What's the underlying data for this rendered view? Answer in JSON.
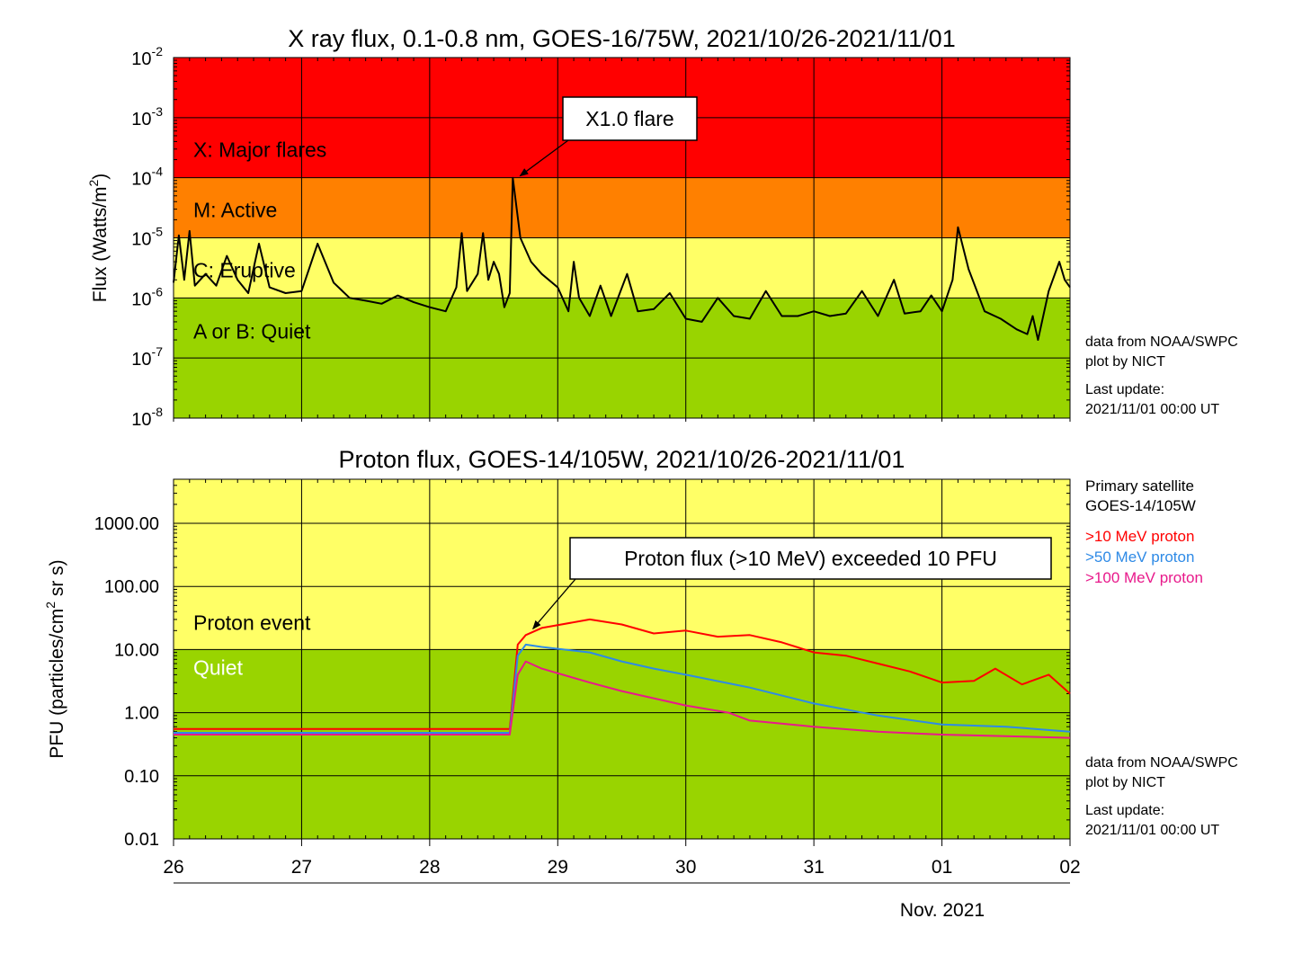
{
  "chart_data": [
    {
      "type": "line",
      "title": "X ray flux, 0.1-0.8 nm, GOES-16/75W, 2021/10/26-2021/11/01",
      "ylabel_main": "Flux (Watts/m",
      "ylabel_sup": "2",
      "ylabel_end": ")",
      "log_scale": true,
      "ylim": [
        1e-08,
        0.01
      ],
      "xlim": [
        "2021-10-26",
        "2021-11-02"
      ],
      "grid": true,
      "y_ticks": [
        {
          "value": 1e-08,
          "base": "10",
          "exp": "-8"
        },
        {
          "value": 1e-07,
          "base": "10",
          "exp": "-7"
        },
        {
          "value": 1e-06,
          "base": "10",
          "exp": "-6"
        },
        {
          "value": 1e-05,
          "base": "10",
          "exp": "-5"
        },
        {
          "value": 0.0001,
          "base": "10",
          "exp": "-4"
        },
        {
          "value": 0.001,
          "base": "10",
          "exp": "-3"
        },
        {
          "value": 0.01,
          "base": "10",
          "exp": "-2"
        }
      ],
      "bands": [
        {
          "label": "X: Major flares",
          "from": 0.0001,
          "to": 0.01,
          "color": "#ff0000"
        },
        {
          "label": "M: Active",
          "from": 1e-05,
          "to": 0.0001,
          "color": "#ff8000"
        },
        {
          "label": "C: Eruptive",
          "from": 1e-06,
          "to": 1e-05,
          "color": "#ffff66"
        },
        {
          "label": "A or B: Quiet",
          "from": 1e-08,
          "to": 1e-06,
          "color": "#99d400"
        }
      ],
      "annotation": {
        "text": "X1.0 flare",
        "x": "2021-10-28 15:35",
        "y": 0.0001
      },
      "side_notes": [
        "data from NOAA/SWPC",
        "plot by NICT",
        "Last update:",
        "2021/11/01 00:00 UT"
      ],
      "series": [
        {
          "color": "#000000",
          "points": [
            [
              "2021-10-26 00:00",
              1.8e-06
            ],
            [
              "2021-10-26 01:00",
              1.1e-05
            ],
            [
              "2021-10-26 02:00",
              2e-06
            ],
            [
              "2021-10-26 03:00",
              1.3e-05
            ],
            [
              "2021-10-26 04:00",
              1.6e-06
            ],
            [
              "2021-10-26 06:00",
              2.5e-06
            ],
            [
              "2021-10-26 08:00",
              1.6e-06
            ],
            [
              "2021-10-26 10:00",
              5e-06
            ],
            [
              "2021-10-26 12:00",
              2e-06
            ],
            [
              "2021-10-26 14:00",
              1.2e-06
            ],
            [
              "2021-10-26 16:00",
              8e-06
            ],
            [
              "2021-10-26 18:00",
              1.5e-06
            ],
            [
              "2021-10-26 21:00",
              1.2e-06
            ],
            [
              "2021-10-27 00:00",
              1.3e-06
            ],
            [
              "2021-10-27 03:00",
              8e-06
            ],
            [
              "2021-10-27 06:00",
              1.8e-06
            ],
            [
              "2021-10-27 09:00",
              1e-06
            ],
            [
              "2021-10-27 12:00",
              9e-07
            ],
            [
              "2021-10-27 15:00",
              8e-07
            ],
            [
              "2021-10-27 18:00",
              1.1e-06
            ],
            [
              "2021-10-27 21:00",
              8.5e-07
            ],
            [
              "2021-10-28 00:00",
              7e-07
            ],
            [
              "2021-10-28 03:00",
              6e-07
            ],
            [
              "2021-10-28 05:00",
              1.5e-06
            ],
            [
              "2021-10-28 06:00",
              1.2e-05
            ],
            [
              "2021-10-28 07:00",
              1.3e-06
            ],
            [
              "2021-10-28 09:00",
              2.5e-06
            ],
            [
              "2021-10-28 10:00",
              1.2e-05
            ],
            [
              "2021-10-28 11:00",
              2e-06
            ],
            [
              "2021-10-28 12:00",
              4e-06
            ],
            [
              "2021-10-28 13:00",
              2.5e-06
            ],
            [
              "2021-10-28 14:00",
              7e-07
            ],
            [
              "2021-10-28 15:00",
              1.2e-06
            ],
            [
              "2021-10-28 15:35",
              0.0001
            ],
            [
              "2021-10-28 17:00",
              1e-05
            ],
            [
              "2021-10-28 19:00",
              4e-06
            ],
            [
              "2021-10-28 21:00",
              2.5e-06
            ],
            [
              "2021-10-29 00:00",
              1.5e-06
            ],
            [
              "2021-10-29 02:00",
              6e-07
            ],
            [
              "2021-10-29 03:00",
              4e-06
            ],
            [
              "2021-10-29 04:00",
              1e-06
            ],
            [
              "2021-10-29 06:00",
              5e-07
            ],
            [
              "2021-10-29 08:00",
              1.6e-06
            ],
            [
              "2021-10-29 10:00",
              5e-07
            ],
            [
              "2021-10-29 13:00",
              2.5e-06
            ],
            [
              "2021-10-29 15:00",
              6e-07
            ],
            [
              "2021-10-29 18:00",
              6.5e-07
            ],
            [
              "2021-10-29 21:00",
              1.2e-06
            ],
            [
              "2021-10-30 00:00",
              4.5e-07
            ],
            [
              "2021-10-30 03:00",
              4e-07
            ],
            [
              "2021-10-30 06:00",
              1e-06
            ],
            [
              "2021-10-30 09:00",
              5e-07
            ],
            [
              "2021-10-30 12:00",
              4.5e-07
            ],
            [
              "2021-10-30 15:00",
              1.3e-06
            ],
            [
              "2021-10-30 18:00",
              5e-07
            ],
            [
              "2021-10-30 21:00",
              5e-07
            ],
            [
              "2021-10-31 00:00",
              6e-07
            ],
            [
              "2021-10-31 03:00",
              5e-07
            ],
            [
              "2021-10-31 06:00",
              5.5e-07
            ],
            [
              "2021-10-31 09:00",
              1.3e-06
            ],
            [
              "2021-10-31 12:00",
              5e-07
            ],
            [
              "2021-10-31 15:00",
              2e-06
            ],
            [
              "2021-10-31 17:00",
              5.5e-07
            ],
            [
              "2021-10-31 20:00",
              6e-07
            ],
            [
              "2021-10-31 22:00",
              1.1e-06
            ],
            [
              "2021-11-01 00:00",
              6e-07
            ],
            [
              "2021-11-01 02:00",
              2e-06
            ],
            [
              "2021-11-01 03:00",
              1.5e-05
            ],
            [
              "2021-11-01 05:00",
              3e-06
            ],
            [
              "2021-11-01 08:00",
              6e-07
            ],
            [
              "2021-11-01 11:00",
              4.5e-07
            ],
            [
              "2021-11-01 14:00",
              3e-07
            ],
            [
              "2021-11-01 16:00",
              2.5e-07
            ],
            [
              "2021-11-01 17:00",
              5e-07
            ],
            [
              "2021-11-01 18:00",
              2e-07
            ],
            [
              "2021-11-01 20:00",
              1.3e-06
            ],
            [
              "2021-11-01 22:00",
              4e-06
            ],
            [
              "2021-11-01 23:00",
              2e-06
            ],
            [
              "2021-11-02 00:00",
              1.5e-06
            ]
          ]
        }
      ]
    },
    {
      "type": "line",
      "title": "Proton flux, GOES-14/105W, 2021/10/26-2021/11/01",
      "ylabel_main": "PFU (particles/cm",
      "ylabel_sup": "2",
      "ylabel_end": "sr s)",
      "log_scale": true,
      "ylim": [
        0.01,
        5000
      ],
      "xlim": [
        "2021-10-26",
        "2021-11-02"
      ],
      "grid": true,
      "y_ticks": [
        {
          "value": 0.01,
          "label": "0.01"
        },
        {
          "value": 0.1,
          "label": "0.10"
        },
        {
          "value": 1,
          "label": "1.00"
        },
        {
          "value": 10,
          "label": "10.00"
        },
        {
          "value": 100,
          "label": "100.00"
        },
        {
          "value": 1000,
          "label": "1000.00"
        }
      ],
      "x_ticks": [
        "26",
        "27",
        "28",
        "29",
        "30",
        "31",
        "01",
        "02"
      ],
      "x_sublabel": "Nov. 2021",
      "bands": [
        {
          "label": "Proton event",
          "from": 10,
          "to": 5000,
          "color": "#ffff66"
        },
        {
          "label": "Quiet",
          "from": 0.01,
          "to": 10,
          "color": "#99d400"
        }
      ],
      "annotation": {
        "text": "Proton flux (>10 MeV) exceeded 10 PFU",
        "x": "2021-10-28 18:00",
        "y": 20
      },
      "side_header": [
        "Primary satellite",
        "GOES-14/105W"
      ],
      "side_notes": [
        "data from NOAA/SWPC",
        "plot by NICT",
        "Last update:",
        "2021/11/01 00:00 UT"
      ],
      "series": [
        {
          "name": ">10 MeV proton",
          "color": "#ff0000",
          "points": [
            [
              "2021-10-26 00:00",
              0.55
            ],
            [
              "2021-10-27 00:00",
              0.55
            ],
            [
              "2021-10-28 00:00",
              0.55
            ],
            [
              "2021-10-28 15:00",
              0.55
            ],
            [
              "2021-10-28 16:30",
              12
            ],
            [
              "2021-10-28 18:00",
              17
            ],
            [
              "2021-10-28 21:00",
              22
            ],
            [
              "2021-10-29 06:00",
              30
            ],
            [
              "2021-10-29 12:00",
              25
            ],
            [
              "2021-10-29 18:00",
              18
            ],
            [
              "2021-10-30 00:00",
              20
            ],
            [
              "2021-10-30 06:00",
              16
            ],
            [
              "2021-10-30 12:00",
              17
            ],
            [
              "2021-10-30 18:00",
              13
            ],
            [
              "2021-10-31 00:00",
              9
            ],
            [
              "2021-10-31 06:00",
              8
            ],
            [
              "2021-10-31 12:00",
              6
            ],
            [
              "2021-10-31 18:00",
              4.5
            ],
            [
              "2021-11-01 00:00",
              3.0
            ],
            [
              "2021-11-01 06:00",
              3.2
            ],
            [
              "2021-11-01 10:00",
              5.0
            ],
            [
              "2021-11-01 15:00",
              2.8
            ],
            [
              "2021-11-01 20:00",
              4.0
            ],
            [
              "2021-11-02 00:00",
              2.0
            ]
          ]
        },
        {
          "name": ">50 MeV proton",
          "color": "#2e8ae6",
          "points": [
            [
              "2021-10-26 00:00",
              0.48
            ],
            [
              "2021-10-27 00:00",
              0.48
            ],
            [
              "2021-10-28 00:00",
              0.48
            ],
            [
              "2021-10-28 15:00",
              0.48
            ],
            [
              "2021-10-28 16:30",
              8
            ],
            [
              "2021-10-28 18:00",
              12
            ],
            [
              "2021-10-28 21:00",
              11
            ],
            [
              "2021-10-29 06:00",
              9
            ],
            [
              "2021-10-29 12:00",
              6.5
            ],
            [
              "2021-10-29 18:00",
              5
            ],
            [
              "2021-10-30 00:00",
              4.0
            ],
            [
              "2021-10-30 12:00",
              2.5
            ],
            [
              "2021-10-31 00:00",
              1.4
            ],
            [
              "2021-10-31 12:00",
              0.9
            ],
            [
              "2021-11-01 00:00",
              0.65
            ],
            [
              "2021-11-01 12:00",
              0.6
            ],
            [
              "2021-11-02 00:00",
              0.5
            ]
          ]
        },
        {
          "name": ">100 MeV proton",
          "color": "#e8198b",
          "points": [
            [
              "2021-10-26 00:00",
              0.45
            ],
            [
              "2021-10-27 00:00",
              0.45
            ],
            [
              "2021-10-28 00:00",
              0.45
            ],
            [
              "2021-10-28 15:00",
              0.45
            ],
            [
              "2021-10-28 16:30",
              4
            ],
            [
              "2021-10-28 18:00",
              6.5
            ],
            [
              "2021-10-28 21:00",
              5
            ],
            [
              "2021-10-29 06:00",
              3
            ],
            [
              "2021-10-29 12:00",
              2.2
            ],
            [
              "2021-10-30 00:00",
              1.3
            ],
            [
              "2021-10-30 08:00",
              1.0
            ],
            [
              "2021-10-30 12:00",
              0.75
            ],
            [
              "2021-10-31 00:00",
              0.6
            ],
            [
              "2021-10-31 12:00",
              0.5
            ],
            [
              "2021-11-01 00:00",
              0.45
            ],
            [
              "2021-11-02 00:00",
              0.4
            ]
          ]
        }
      ]
    }
  ]
}
